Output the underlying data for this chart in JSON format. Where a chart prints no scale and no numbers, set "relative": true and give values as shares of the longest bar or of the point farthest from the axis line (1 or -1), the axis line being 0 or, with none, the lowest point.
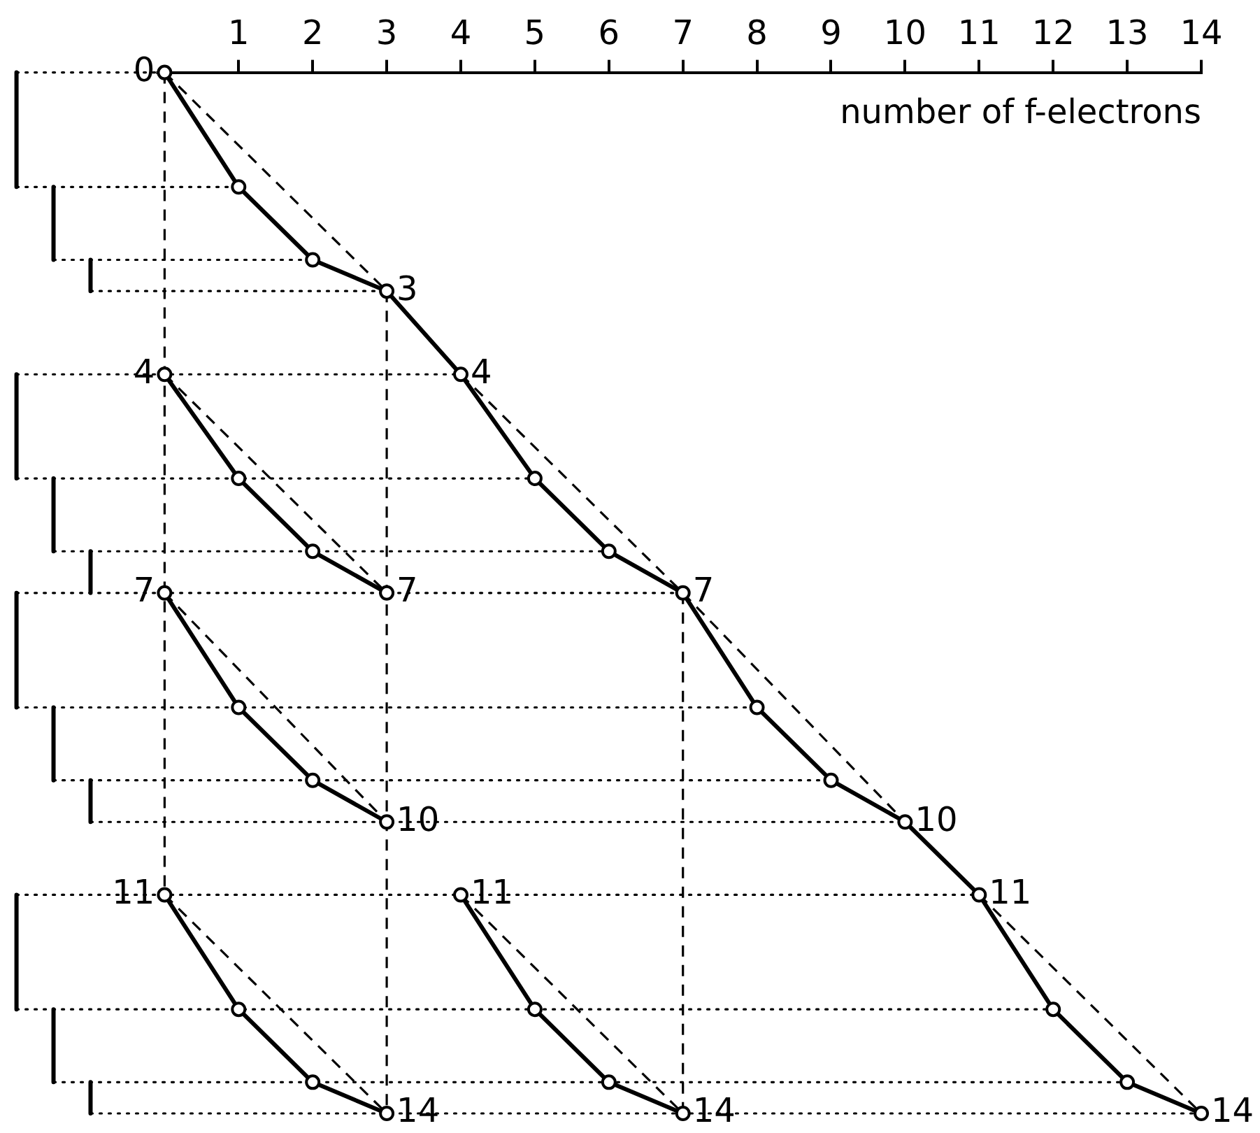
{
  "chart_data": {
    "type": "line",
    "relative": true,
    "xlabel": "number of f-electrons",
    "xlim": [
      -2.1,
      14
    ],
    "xticks": [
      1,
      2,
      3,
      4,
      5,
      6,
      7,
      8,
      9,
      10,
      11,
      12,
      13,
      14
    ],
    "grid": false,
    "legend": false,
    "series": [
      {
        "color": "#000000",
        "line_style": "solid",
        "marker": "circle",
        "x": [
          0,
          1,
          2,
          3,
          4,
          5,
          6,
          7,
          8,
          9,
          10,
          11,
          12,
          13,
          14
        ],
        "values": [
          0,
          -0.11,
          -0.18,
          -0.21,
          -0.29,
          -0.39,
          -0.46,
          -0.5,
          -0.61,
          -0.68,
          -0.72,
          -0.79,
          -0.9,
          -0.97,
          -1
        ]
      },
      {
        "color": "#000000",
        "line_style": "solid",
        "marker": "circle",
        "x": [
          0,
          1,
          2,
          3
        ],
        "values": [
          -0.29,
          -0.39,
          -0.46,
          -0.5
        ]
      },
      {
        "color": "#000000",
        "line_style": "solid",
        "marker": "circle",
        "x": [
          0,
          1,
          2,
          3
        ],
        "values": [
          -0.5,
          -0.61,
          -0.68,
          -0.72
        ]
      },
      {
        "color": "#000000",
        "line_style": "solid",
        "marker": "circle",
        "x": [
          0,
          1,
          2,
          3
        ],
        "values": [
          -0.79,
          -0.9,
          -0.97,
          -1
        ]
      },
      {
        "color": "#000000",
        "line_style": "solid",
        "marker": "circle",
        "x": [
          4,
          5,
          6,
          7
        ],
        "values": [
          -0.79,
          -0.9,
          -0.97,
          -1
        ]
      },
      {
        "color": "#000000",
        "line_style": "dashed",
        "marker": "none",
        "x": [
          0,
          3
        ],
        "values": [
          0,
          -0.21
        ]
      },
      {
        "color": "#000000",
        "line_style": "dashed",
        "marker": "none",
        "x": [
          4,
          7
        ],
        "values": [
          -0.29,
          -0.5
        ]
      },
      {
        "color": "#000000",
        "line_style": "dashed",
        "marker": "none",
        "x": [
          7,
          10
        ],
        "values": [
          -0.5,
          -0.72
        ]
      },
      {
        "color": "#000000",
        "line_style": "dashed",
        "marker": "none",
        "x": [
          11,
          14
        ],
        "values": [
          -0.79,
          -1
        ]
      },
      {
        "color": "#000000",
        "line_style": "dashed",
        "marker": "none",
        "x": [
          0,
          3
        ],
        "values": [
          -0.29,
          -0.5
        ]
      },
      {
        "color": "#000000",
        "line_style": "dashed",
        "marker": "none",
        "x": [
          0,
          3
        ],
        "values": [
          -0.5,
          -0.72
        ]
      },
      {
        "color": "#000000",
        "line_style": "dashed",
        "marker": "none",
        "x": [
          0,
          3
        ],
        "values": [
          -0.79,
          -1
        ]
      },
      {
        "color": "#000000",
        "line_style": "dashed",
        "marker": "none",
        "x": [
          4,
          7
        ],
        "values": [
          -0.79,
          -1
        ]
      },
      {
        "color": "#000000",
        "line_style": "dashed",
        "marker": "none",
        "x": [
          0,
          0
        ],
        "values": [
          0,
          -0.79
        ]
      },
      {
        "color": "#000000",
        "line_style": "dashed",
        "marker": "none",
        "x": [
          3,
          3
        ],
        "values": [
          -0.21,
          -1
        ]
      },
      {
        "color": "#000000",
        "line_style": "dashed",
        "marker": "none",
        "x": [
          7,
          7
        ],
        "values": [
          -0.5,
          -1
        ]
      },
      {
        "color": "#000000",
        "line_style": "solid",
        "marker": "none",
        "x": [
          -2,
          -2
        ],
        "values": [
          0,
          -0.11
        ]
      },
      {
        "color": "#000000",
        "line_style": "solid",
        "marker": "none",
        "x": [
          -1.5,
          -1.5
        ],
        "values": [
          -0.11,
          -0.18
        ]
      },
      {
        "color": "#000000",
        "line_style": "solid",
        "marker": "none",
        "x": [
          -1,
          -1
        ],
        "values": [
          -0.18,
          -0.21
        ]
      },
      {
        "color": "#000000",
        "line_style": "solid",
        "marker": "none",
        "x": [
          -2,
          -2
        ],
        "values": [
          -0.29,
          -0.39
        ]
      },
      {
        "color": "#000000",
        "line_style": "solid",
        "marker": "none",
        "x": [
          -1.5,
          -1.5
        ],
        "values": [
          -0.39,
          -0.46
        ]
      },
      {
        "color": "#000000",
        "line_style": "solid",
        "marker": "none",
        "x": [
          -1,
          -1
        ],
        "values": [
          -0.46,
          -0.5
        ]
      },
      {
        "color": "#000000",
        "line_style": "solid",
        "marker": "none",
        "x": [
          -2,
          -2
        ],
        "values": [
          -0.5,
          -0.61
        ]
      },
      {
        "color": "#000000",
        "line_style": "solid",
        "marker": "none",
        "x": [
          -1.5,
          -1.5
        ],
        "values": [
          -0.61,
          -0.68
        ]
      },
      {
        "color": "#000000",
        "line_style": "solid",
        "marker": "none",
        "x": [
          -1,
          -1
        ],
        "values": [
          -0.68,
          -0.72
        ]
      },
      {
        "color": "#000000",
        "line_style": "solid",
        "marker": "none",
        "x": [
          -2,
          -2
        ],
        "values": [
          -0.79,
          -0.9
        ]
      },
      {
        "color": "#000000",
        "line_style": "solid",
        "marker": "none",
        "x": [
          -1.5,
          -1.5
        ],
        "values": [
          -0.9,
          -0.97
        ]
      },
      {
        "color": "#000000",
        "line_style": "solid",
        "marker": "none",
        "x": [
          -1,
          -1
        ],
        "values": [
          -0.97,
          -1
        ]
      },
      {
        "color": "#000000",
        "line_style": "dotted",
        "marker": "none",
        "x": [
          -2,
          0
        ],
        "values": [
          0,
          0
        ]
      },
      {
        "color": "#000000",
        "line_style": "dotted",
        "marker": "none",
        "x": [
          -2,
          1
        ],
        "values": [
          -0.11,
          -0.11
        ]
      },
      {
        "color": "#000000",
        "line_style": "dotted",
        "marker": "none",
        "x": [
          -1.5,
          2
        ],
        "values": [
          -0.18,
          -0.18
        ]
      },
      {
        "color": "#000000",
        "line_style": "dotted",
        "marker": "none",
        "x": [
          -1,
          3
        ],
        "values": [
          -0.21,
          -0.21
        ]
      },
      {
        "color": "#000000",
        "line_style": "dotted",
        "marker": "none",
        "x": [
          -2,
          4
        ],
        "values": [
          -0.29,
          -0.29
        ]
      },
      {
        "color": "#000000",
        "line_style": "dotted",
        "marker": "none",
        "x": [
          -2,
          5
        ],
        "values": [
          -0.39,
          -0.39
        ]
      },
      {
        "color": "#000000",
        "line_style": "dotted",
        "marker": "none",
        "x": [
          -1.5,
          6
        ],
        "values": [
          -0.46,
          -0.46
        ]
      },
      {
        "color": "#000000",
        "line_style": "dotted",
        "marker": "none",
        "x": [
          -2,
          7
        ],
        "values": [
          -0.5,
          -0.5
        ]
      },
      {
        "color": "#000000",
        "line_style": "dotted",
        "marker": "none",
        "x": [
          -2,
          8
        ],
        "values": [
          -0.61,
          -0.61
        ]
      },
      {
        "color": "#000000",
        "line_style": "dotted",
        "marker": "none",
        "x": [
          -1.5,
          9
        ],
        "values": [
          -0.68,
          -0.68
        ]
      },
      {
        "color": "#000000",
        "line_style": "dotted",
        "marker": "none",
        "x": [
          -1,
          10
        ],
        "values": [
          -0.72,
          -0.72
        ]
      },
      {
        "color": "#000000",
        "line_style": "dotted",
        "marker": "none",
        "x": [
          -2,
          11
        ],
        "values": [
          -0.79,
          -0.79
        ]
      },
      {
        "color": "#000000",
        "line_style": "dotted",
        "marker": "none",
        "x": [
          -2,
          12
        ],
        "values": [
          -0.9,
          -0.9
        ]
      },
      {
        "color": "#000000",
        "line_style": "dotted",
        "marker": "none",
        "x": [
          -1.5,
          13
        ],
        "values": [
          -0.97,
          -0.97
        ]
      },
      {
        "color": "#000000",
        "line_style": "dotted",
        "marker": "none",
        "x": [
          -1,
          14
        ],
        "values": [
          -1,
          -1
        ]
      }
    ],
    "annotations": [
      {
        "text": "0",
        "x": 0,
        "y": 0
      },
      {
        "text": "3",
        "x": 3,
        "y": -0.21
      },
      {
        "text": "4",
        "x": 0,
        "y": -0.29
      },
      {
        "text": "4",
        "x": 4,
        "y": -0.29
      },
      {
        "text": "7",
        "x": 0,
        "y": -0.5
      },
      {
        "text": "7",
        "x": 3,
        "y": -0.5
      },
      {
        "text": "7",
        "x": 7,
        "y": -0.5
      },
      {
        "text": "10",
        "x": 3,
        "y": -0.72
      },
      {
        "text": "10",
        "x": 10,
        "y": -0.72
      },
      {
        "text": "11",
        "x": 0,
        "y": -0.79
      },
      {
        "text": "11",
        "x": 4,
        "y": -0.79
      },
      {
        "text": "11",
        "x": 11,
        "y": -0.79
      },
      {
        "text": "14",
        "x": 3,
        "y": -1
      },
      {
        "text": "14",
        "x": 7,
        "y": -1
      },
      {
        "text": "14",
        "x": 14,
        "y": -1
      }
    ]
  }
}
